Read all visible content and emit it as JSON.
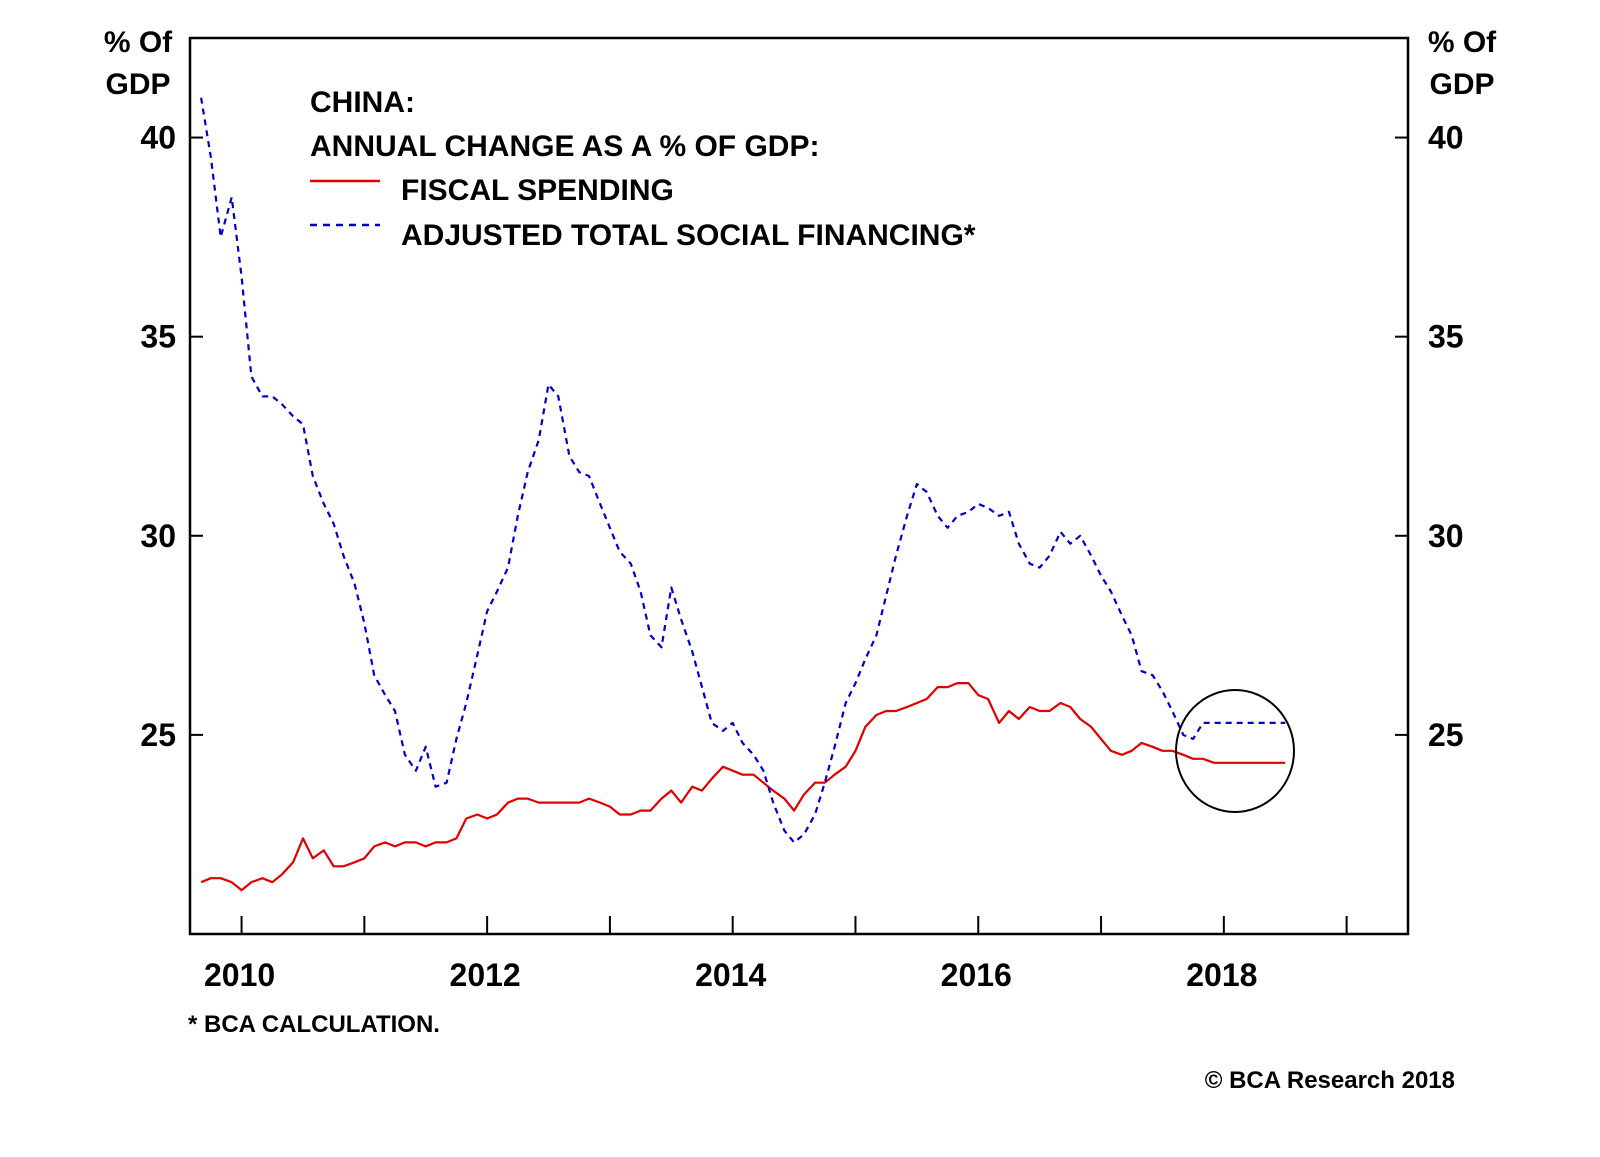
{
  "colors": {
    "fiscal": "#e00000",
    "tsf": "#0000cc",
    "axis": "#000000",
    "background": "#ffffff"
  },
  "chart_data": {
    "type": "line",
    "title": "CHINA:",
    "subtitle": "ANNUAL CHANGE AS A % OF GDP:",
    "left_axis_label": [
      "% Of",
      "GDP"
    ],
    "right_axis_label": [
      "% Of",
      "GDP"
    ],
    "ylim": [
      20,
      42.5
    ],
    "y_ticks": [
      25,
      30,
      35,
      40
    ],
    "y_tick_labels": [
      "25",
      "30",
      "35",
      "40"
    ],
    "xlim": [
      2009.58,
      2019.5
    ],
    "x_ticks": [
      2010,
      2011,
      2012,
      2013,
      2014,
      2015,
      2016,
      2017,
      2018,
      2019
    ],
    "x_tick_labels": [
      "2010",
      "2012",
      "2014",
      "2016",
      "2018"
    ],
    "x_label_positions": [
      2010,
      2012,
      2014,
      2016,
      2018
    ],
    "grid": false,
    "legend_position": "top-left",
    "footnote": "* BCA CALCULATION.",
    "source": "© BCA Research 2018",
    "annotation": "circle around latest readings (2018)",
    "series": [
      {
        "name": "FISCAL SPENDING",
        "style": "solid",
        "x": [
          2009.67,
          2009.75,
          2009.83,
          2009.92,
          2010.0,
          2010.08,
          2010.17,
          2010.25,
          2010.33,
          2010.42,
          2010.5,
          2010.58,
          2010.67,
          2010.75,
          2010.83,
          2010.92,
          2011.0,
          2011.08,
          2011.17,
          2011.25,
          2011.33,
          2011.42,
          2011.5,
          2011.58,
          2011.67,
          2011.75,
          2011.83,
          2011.92,
          2012.0,
          2012.08,
          2012.17,
          2012.25,
          2012.33,
          2012.42,
          2012.5,
          2012.58,
          2012.67,
          2012.75,
          2012.83,
          2012.92,
          2013.0,
          2013.08,
          2013.17,
          2013.25,
          2013.33,
          2013.42,
          2013.5,
          2013.58,
          2013.67,
          2013.75,
          2013.83,
          2013.92,
          2014.0,
          2014.08,
          2014.17,
          2014.25,
          2014.33,
          2014.42,
          2014.5,
          2014.58,
          2014.67,
          2014.75,
          2014.83,
          2014.92,
          2015.0,
          2015.08,
          2015.17,
          2015.25,
          2015.33,
          2015.42,
          2015.5,
          2015.58,
          2015.67,
          2015.75,
          2015.83,
          2015.92,
          2016.0,
          2016.08,
          2016.17,
          2016.25,
          2016.33,
          2016.42,
          2016.5,
          2016.58,
          2016.67,
          2016.75,
          2016.83,
          2016.92,
          2017.0,
          2017.08,
          2017.17,
          2017.25,
          2017.33,
          2017.42,
          2017.5,
          2017.58,
          2017.67,
          2017.75,
          2017.83,
          2017.92,
          2018.0,
          2018.08,
          2018.17,
          2018.25,
          2018.33,
          2018.42,
          2018.5
        ],
        "values": [
          21.3,
          21.4,
          21.4,
          21.3,
          21.1,
          21.3,
          21.4,
          21.3,
          21.5,
          21.8,
          22.4,
          21.9,
          22.1,
          21.7,
          21.7,
          21.8,
          21.9,
          22.2,
          22.3,
          22.2,
          22.3,
          22.3,
          22.2,
          22.3,
          22.3,
          22.4,
          22.9,
          23.0,
          22.9,
          23.0,
          23.3,
          23.4,
          23.4,
          23.3,
          23.3,
          23.3,
          23.3,
          23.3,
          23.4,
          23.3,
          23.2,
          23.0,
          23.0,
          23.1,
          23.1,
          23.4,
          23.6,
          23.3,
          23.7,
          23.6,
          23.9,
          24.2,
          24.1,
          24.0,
          24.0,
          23.8,
          23.6,
          23.4,
          23.1,
          23.5,
          23.8,
          23.8,
          24.0,
          24.2,
          24.6,
          25.2,
          25.5,
          25.6,
          25.6,
          25.7,
          25.8,
          25.9,
          26.2,
          26.2,
          26.3,
          26.3,
          26.0,
          25.9,
          25.3,
          25.6,
          25.4,
          25.7,
          25.6,
          25.6,
          25.8,
          25.7,
          25.4,
          25.2,
          24.9,
          24.6,
          24.5,
          24.6,
          24.8,
          24.7,
          24.6,
          24.6,
          24.5,
          24.4,
          24.4,
          24.3,
          24.3,
          24.3,
          24.3,
          24.3,
          24.3,
          24.3,
          24.3
        ]
      },
      {
        "name": "ADJUSTED TOTAL SOCIAL FINANCING*",
        "style": "dashed",
        "x": [
          2009.67,
          2009.75,
          2009.83,
          2009.92,
          2010.0,
          2010.08,
          2010.17,
          2010.25,
          2010.33,
          2010.42,
          2010.5,
          2010.58,
          2010.67,
          2010.75,
          2010.83,
          2010.92,
          2011.0,
          2011.08,
          2011.17,
          2011.25,
          2011.33,
          2011.42,
          2011.5,
          2011.58,
          2011.67,
          2011.75,
          2011.83,
          2011.92,
          2012.0,
          2012.08,
          2012.17,
          2012.25,
          2012.33,
          2012.42,
          2012.5,
          2012.58,
          2012.67,
          2012.75,
          2012.83,
          2012.92,
          2013.0,
          2013.08,
          2013.17,
          2013.25,
          2013.33,
          2013.42,
          2013.5,
          2013.58,
          2013.67,
          2013.75,
          2013.83,
          2013.92,
          2014.0,
          2014.08,
          2014.17,
          2014.25,
          2014.33,
          2014.42,
          2014.5,
          2014.58,
          2014.67,
          2014.75,
          2014.83,
          2014.92,
          2015.0,
          2015.08,
          2015.17,
          2015.25,
          2015.33,
          2015.42,
          2015.5,
          2015.58,
          2015.67,
          2015.75,
          2015.83,
          2015.92,
          2016.0,
          2016.08,
          2016.17,
          2016.25,
          2016.33,
          2016.42,
          2016.5,
          2016.58,
          2016.67,
          2016.75,
          2016.83,
          2016.92,
          2017.0,
          2017.08,
          2017.17,
          2017.25,
          2017.33,
          2017.42,
          2017.5,
          2017.58,
          2017.67,
          2017.75,
          2017.83,
          2017.92,
          2018.0,
          2018.08,
          2018.17,
          2018.25,
          2018.33,
          2018.42,
          2018.5
        ],
        "values": [
          41.0,
          39.5,
          37.5,
          38.5,
          36.5,
          34.0,
          33.5,
          33.5,
          33.3,
          33.0,
          32.8,
          31.5,
          30.8,
          30.3,
          29.5,
          28.8,
          27.8,
          26.5,
          26.0,
          25.6,
          24.5,
          24.1,
          24.7,
          23.7,
          23.8,
          24.9,
          25.8,
          27.0,
          28.1,
          28.6,
          29.2,
          30.5,
          31.6,
          32.4,
          33.8,
          33.5,
          32.0,
          31.6,
          31.5,
          30.8,
          30.2,
          29.6,
          29.3,
          28.6,
          27.5,
          27.2,
          28.7,
          27.9,
          27.1,
          26.2,
          25.3,
          25.1,
          25.3,
          24.8,
          24.5,
          24.1,
          23.3,
          22.6,
          22.3,
          22.5,
          23.0,
          23.8,
          24.7,
          25.8,
          26.3,
          26.9,
          27.5,
          28.5,
          29.5,
          30.5,
          31.3,
          31.1,
          30.5,
          30.2,
          30.5,
          30.6,
          30.8,
          30.7,
          30.5,
          30.6,
          29.8,
          29.3,
          29.2,
          29.5,
          30.1,
          29.8,
          30.0,
          29.5,
          29.0,
          28.6,
          28.0,
          27.5,
          26.6,
          26.5,
          26.1,
          25.6,
          25.0,
          24.9,
          25.3,
          25.3,
          25.3,
          25.3,
          25.3,
          25.3,
          25.3,
          25.3,
          25.3
        ]
      }
    ]
  }
}
